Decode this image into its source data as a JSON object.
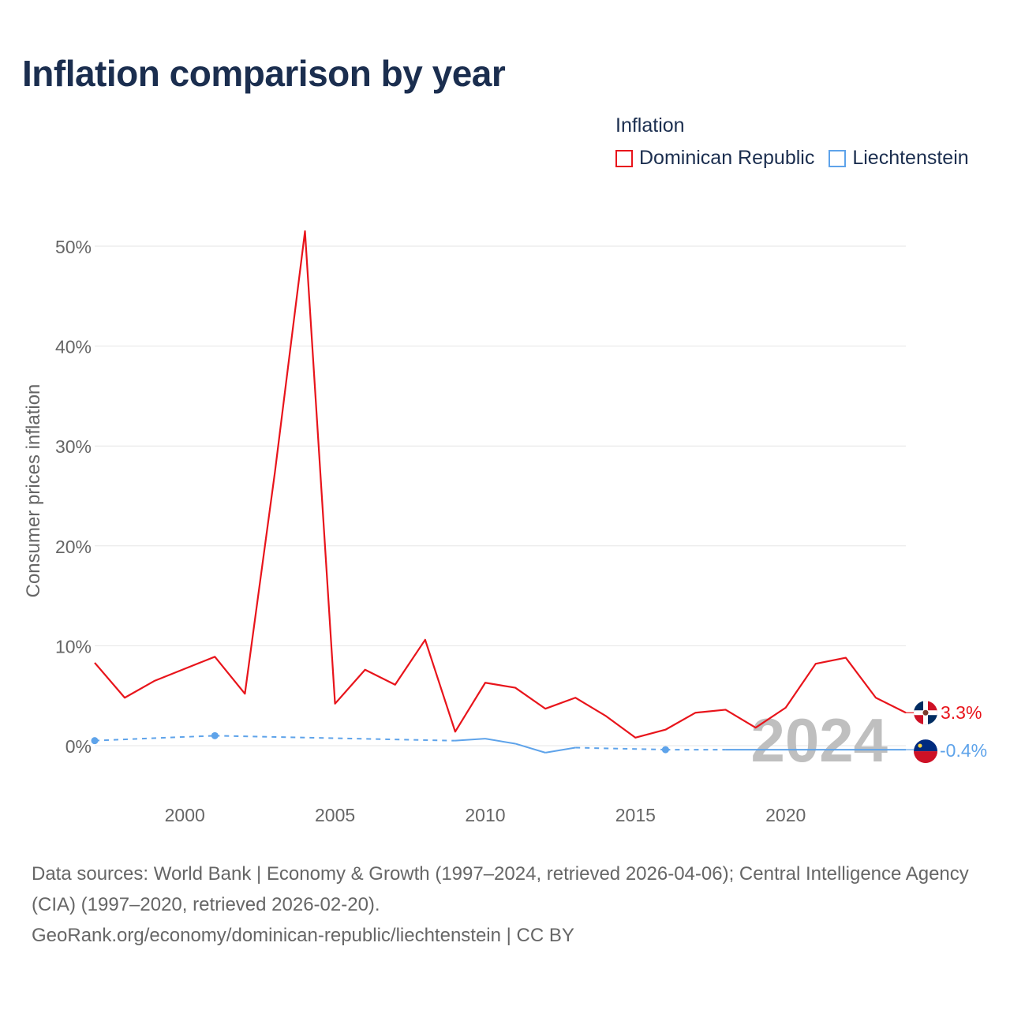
{
  "title": "Inflation comparison by year",
  "legend": {
    "title": "Inflation",
    "items": [
      {
        "label": "Dominican Republic",
        "color": "#e8141b"
      },
      {
        "label": "Liechtenstein",
        "color": "#5ea3ea"
      }
    ]
  },
  "footer": {
    "sources": "Data sources: World Bank | Economy & Growth (1997–2024, retrieved 2026-04-06); Central Intelligence Agency (CIA) (1997–2020, retrieved 2026-02-20).",
    "url": "GeoRank.org/economy/dominican-republic/liechtenstein | CC BY"
  },
  "chart_data": {
    "type": "line",
    "title": "Inflation comparison by year",
    "ylabel": "Consumer prices inflation",
    "xlabel": "",
    "xlim": [
      1997,
      2024
    ],
    "ylim": [
      -5,
      55
    ],
    "x_ticks": [
      2000,
      2005,
      2010,
      2015,
      2020
    ],
    "x_tick_labels": [
      "2000",
      "2005",
      "2010",
      "2015",
      "2020"
    ],
    "y_ticks": [
      0,
      10,
      20,
      30,
      40,
      50
    ],
    "y_tick_labels": [
      "0%",
      "10%",
      "20%",
      "30%",
      "40%",
      "50%"
    ],
    "grid": true,
    "year_watermark": "2024",
    "series": [
      {
        "name": "Dominican Republic",
        "color": "#e8141b",
        "end_label": "3.3%",
        "flag": "dominican-republic-flag-icon",
        "points": [
          [
            1997,
            8.3
          ],
          [
            1998,
            4.8
          ],
          [
            1999,
            6.5
          ],
          [
            2000,
            7.7
          ],
          [
            2001,
            8.9
          ],
          [
            2002,
            5.2
          ],
          [
            2003,
            27.4
          ],
          [
            2004,
            51.5
          ],
          [
            2005,
            4.2
          ],
          [
            2006,
            7.6
          ],
          [
            2007,
            6.1
          ],
          [
            2008,
            10.6
          ],
          [
            2009,
            1.4
          ],
          [
            2010,
            6.3
          ],
          [
            2011,
            5.8
          ],
          [
            2012,
            3.7
          ],
          [
            2013,
            4.8
          ],
          [
            2014,
            3.0
          ],
          [
            2015,
            0.8
          ],
          [
            2016,
            1.6
          ],
          [
            2017,
            3.3
          ],
          [
            2018,
            3.6
          ],
          [
            2019,
            1.8
          ],
          [
            2020,
            3.8
          ],
          [
            2021,
            8.2
          ],
          [
            2022,
            8.8
          ],
          [
            2023,
            4.8
          ],
          [
            2024,
            3.3
          ]
        ]
      },
      {
        "name": "Liechtenstein",
        "color": "#5ea3ea",
        "end_label": "-0.4%",
        "flag": "liechtenstein-flag-icon",
        "points": [
          [
            1997,
            0.5
          ],
          [
            2001,
            1.0
          ],
          [
            2009,
            0.5
          ],
          [
            2010,
            0.7
          ],
          [
            2011,
            0.2
          ],
          [
            2012,
            -0.7
          ],
          [
            2013,
            -0.2
          ],
          [
            2016,
            -0.4
          ],
          [
            2018,
            -0.4
          ],
          [
            2024,
            -0.4
          ]
        ],
        "dashed_segments": [
          [
            1997,
            2009
          ],
          [
            2013,
            2018
          ]
        ],
        "observed_markers": [
          1997,
          2001,
          2016
        ]
      }
    ]
  }
}
